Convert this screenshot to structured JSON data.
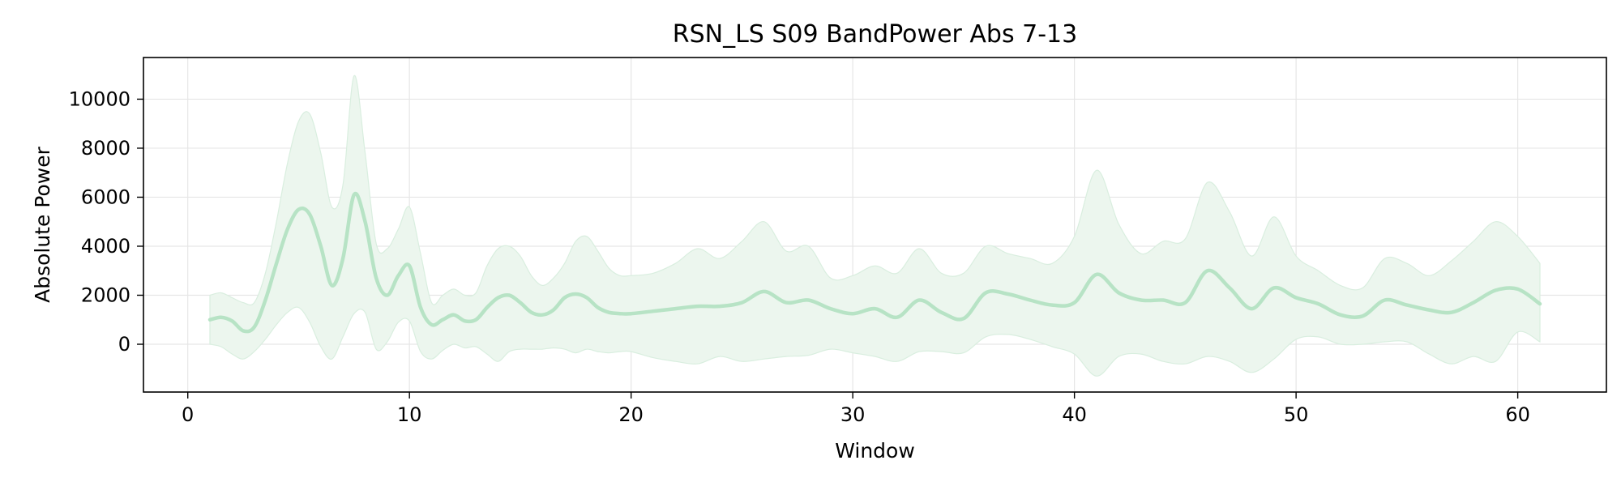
{
  "chart_data": {
    "type": "line",
    "title": "RSN_LS S09 BandPower Abs 7-13",
    "xlabel": "Window",
    "ylabel": "Absolute Power",
    "xlim": [
      -2,
      64
    ],
    "ylim": [
      -1950,
      11700
    ],
    "x_ticks": [
      0,
      10,
      20,
      30,
      40,
      50,
      60
    ],
    "y_ticks": [
      0,
      2000,
      4000,
      6000,
      8000,
      10000
    ],
    "grid": true,
    "legend": "none",
    "colors": {
      "line": "#b7e3c5",
      "band": "#ecf6ee",
      "band_edge": "#d9eedf",
      "grid": "#e6e6e6"
    },
    "series": [
      {
        "x": [
          1,
          1.5,
          2,
          2.5,
          3,
          3.5,
          4,
          4.5,
          5,
          5.5,
          6,
          6.5,
          7,
          7.5,
          8,
          8.5,
          9,
          9.5,
          10,
          10.5,
          11,
          11.5,
          12,
          12.5,
          13,
          13.5,
          14,
          14.5,
          15,
          15.5,
          16,
          16.5,
          17,
          17.5,
          18,
          18.5,
          19,
          19.5,
          20,
          21,
          22,
          23,
          24,
          25,
          26,
          27,
          28,
          29,
          30,
          31,
          32,
          33,
          34,
          35,
          36,
          37,
          38,
          39,
          40,
          41,
          42,
          43,
          44,
          45,
          46,
          47,
          48,
          49,
          50,
          51,
          52,
          53,
          54,
          55,
          56,
          57,
          58,
          59,
          60,
          61
        ],
        "mean": [
          1000,
          1100,
          950,
          550,
          700,
          1800,
          3300,
          4700,
          5500,
          5300,
          4000,
          2400,
          3500,
          6100,
          5000,
          2700,
          2000,
          2800,
          3200,
          1500,
          800,
          1000,
          1200,
          950,
          1000,
          1500,
          1900,
          2000,
          1700,
          1300,
          1200,
          1400,
          1900,
          2050,
          1900,
          1500,
          1300,
          1250,
          1250,
          1350,
          1450,
          1550,
          1550,
          1700,
          2150,
          1700,
          1800,
          1450,
          1250,
          1450,
          1100,
          1800,
          1300,
          1050,
          2100,
          2050,
          1800,
          1600,
          1700,
          2850,
          2100,
          1800,
          1800,
          1700,
          3000,
          2300,
          1450,
          2300,
          1900,
          1650,
          1200,
          1150,
          1800,
          1600,
          1400,
          1300,
          1700,
          2200,
          2250,
          1650
        ],
        "upper": [
          2000,
          2100,
          1900,
          1700,
          1700,
          2900,
          5000,
          7400,
          9100,
          9400,
          7800,
          5600,
          6500,
          10950,
          7800,
          4100,
          3900,
          4700,
          5600,
          3700,
          1700,
          2000,
          2250,
          2000,
          2100,
          3200,
          3900,
          4000,
          3600,
          2800,
          2400,
          2700,
          3300,
          4200,
          4400,
          3800,
          3100,
          2800,
          2800,
          2900,
          3300,
          3900,
          3500,
          4200,
          5000,
          3800,
          4000,
          2700,
          2800,
          3200,
          2900,
          3900,
          2900,
          2900,
          4000,
          3700,
          3500,
          3300,
          4400,
          7100,
          4900,
          3700,
          4200,
          4300,
          6600,
          5400,
          3600,
          5200,
          3600,
          3000,
          2400,
          2300,
          3500,
          3300,
          2800,
          3400,
          4200,
          5000,
          4400,
          3300
        ],
        "lower": [
          0,
          -100,
          -400,
          -600,
          -300,
          200,
          800,
          1300,
          1500,
          900,
          -100,
          -600,
          300,
          1250,
          1300,
          -200,
          100,
          900,
          950,
          -300,
          -600,
          -250,
          0,
          -150,
          -100,
          -400,
          -700,
          -300,
          -200,
          -200,
          -200,
          -150,
          -200,
          -350,
          -200,
          -300,
          -350,
          -300,
          -300,
          -550,
          -700,
          -800,
          -500,
          -700,
          -600,
          -500,
          -450,
          -200,
          -350,
          -500,
          -700,
          -300,
          -300,
          -350,
          300,
          400,
          200,
          -100,
          -400,
          -1300,
          -500,
          -400,
          -700,
          -800,
          -500,
          -700,
          -1150,
          -600,
          200,
          300,
          0,
          0,
          100,
          100,
          -400,
          -800,
          -500,
          -700,
          500,
          100
        ]
      }
    ]
  }
}
